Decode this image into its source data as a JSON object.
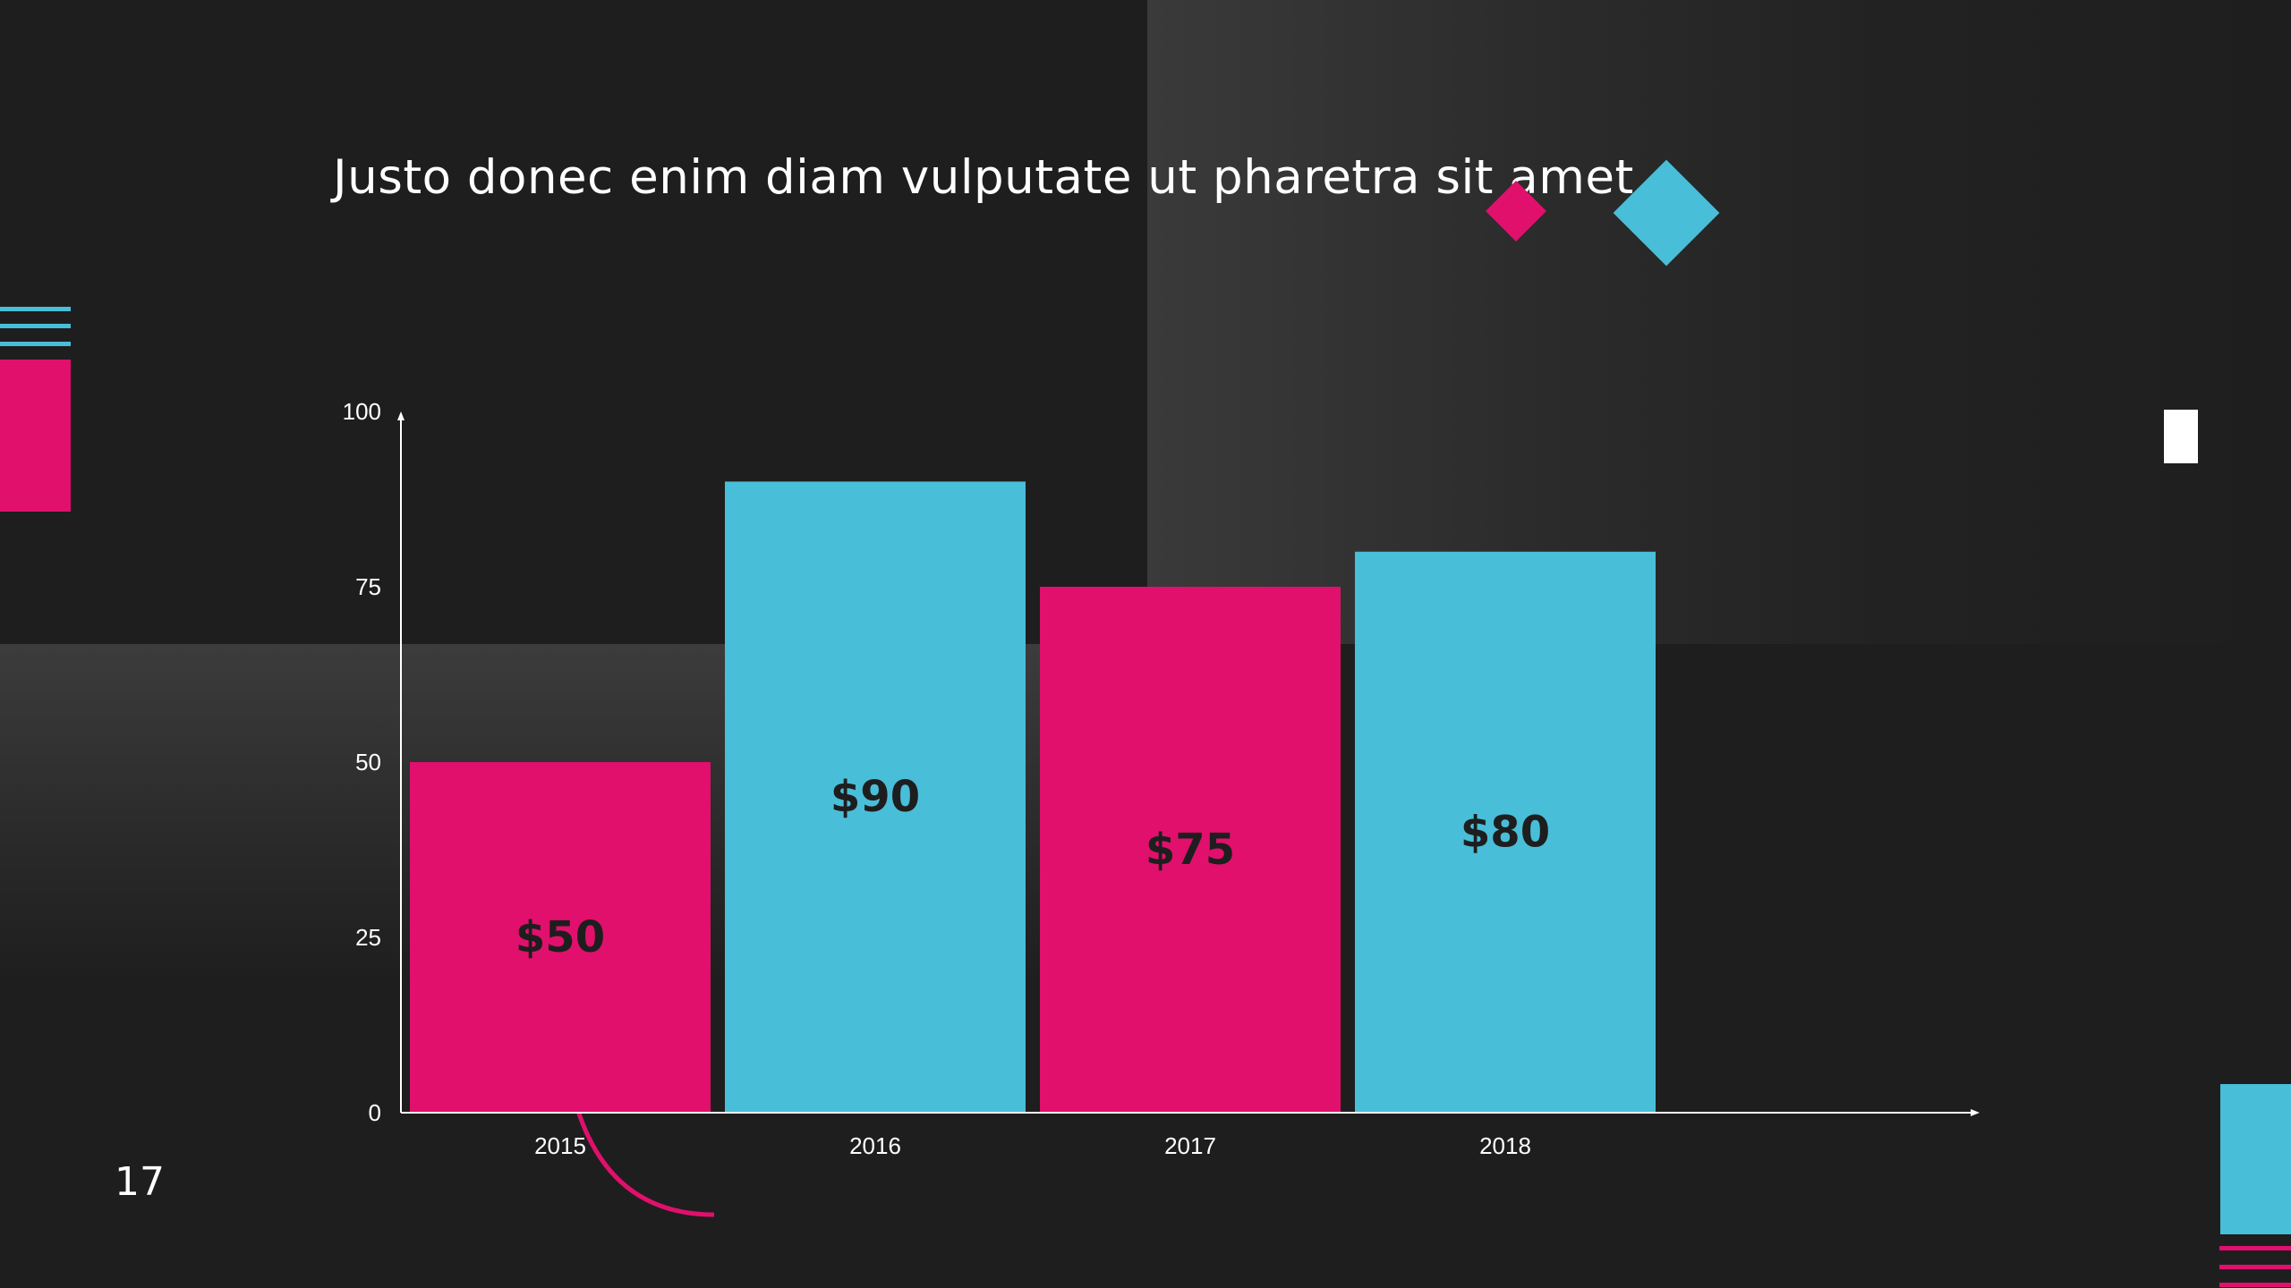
{
  "slide": {
    "title": "Justo donec enim diam vulputate ut pharetra sit amet.",
    "page_number": "17"
  },
  "colors": {
    "background": "#1e1e1e",
    "accent_pink": "#e0106c",
    "accent_cyan": "#49bed8",
    "bar_label": "#1e1e1e",
    "axis": "#ffffff"
  },
  "chart_data": {
    "type": "bar",
    "title": "",
    "xlabel": "",
    "ylabel": "",
    "categories": [
      "2015",
      "2016",
      "2017",
      "2018"
    ],
    "values": [
      50,
      90,
      75,
      80
    ],
    "data_labels": [
      "$50",
      "$90",
      "$75",
      "$80"
    ],
    "bar_colors": [
      "#e0106c",
      "#49bed8",
      "#e0106c",
      "#49bed8"
    ],
    "yticks": [
      0,
      25,
      50,
      75,
      100
    ],
    "ylim": [
      0,
      100
    ],
    "grid": false,
    "legend": false
  }
}
